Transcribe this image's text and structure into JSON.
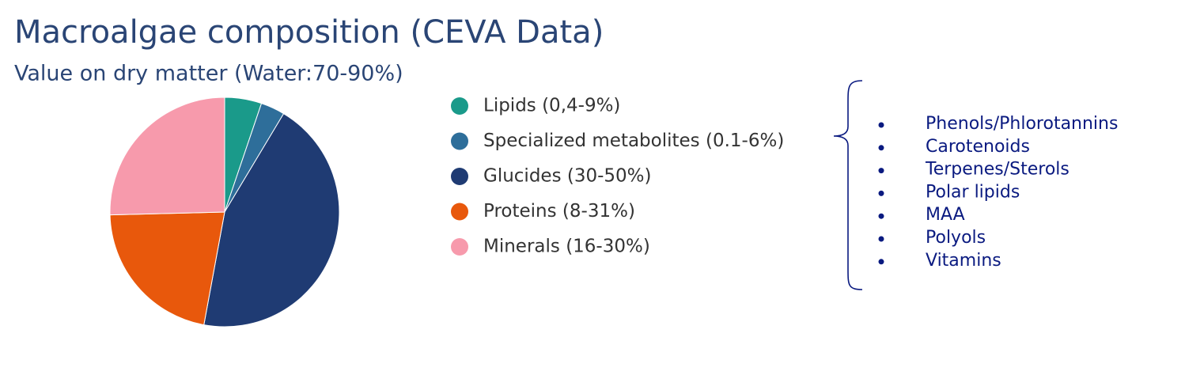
{
  "chart_data": {
    "type": "pie",
    "title": "Macroalgae composition (CEVA Data)",
    "subtitle": "Value on dry matter (Water:70-90%)",
    "categories": [
      "Lipids (0,4-9%)",
      "Specialized metabolites (0.1-6%)",
      "Glucides (30-50%)",
      "Proteins (8-31%)",
      "Minerals (16-30%)"
    ],
    "values": [
      5.2,
      3.4,
      44.3,
      21.7,
      25.4
    ],
    "colors": [
      "#1a9a8a",
      "#2e6e9a",
      "#1f3b73",
      "#e8580c",
      "#f79aac"
    ]
  },
  "side_list": {
    "items": [
      "Phenols/Phlorotannins",
      "Carotenoids",
      "Terpenes/Sterols",
      "Polar lipids",
      "MAA",
      "Polyols",
      "Vitamins"
    ]
  }
}
